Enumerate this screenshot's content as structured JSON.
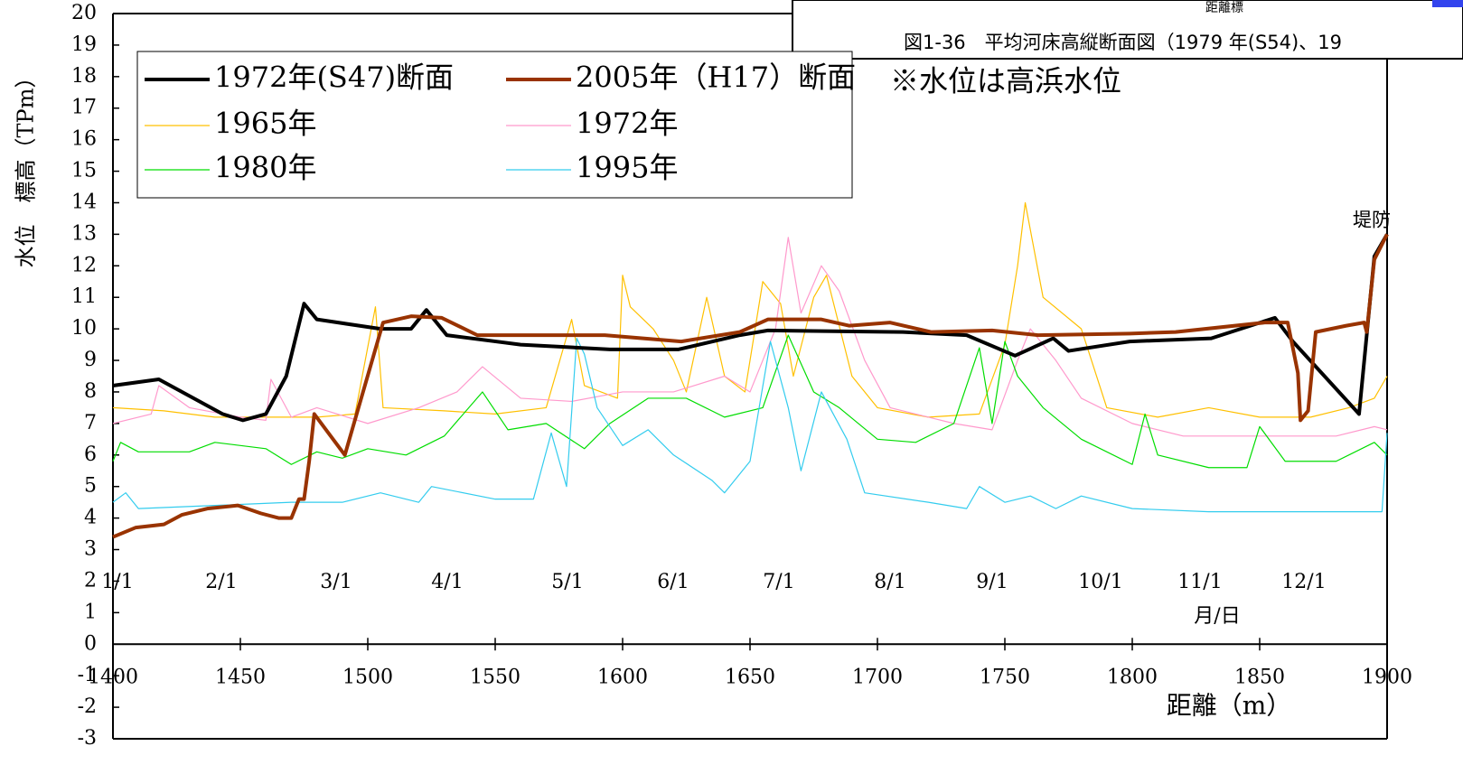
{
  "chart_data": {
    "type": "line",
    "ylabel": "水位　標高（TPm）",
    "xlabel": "距離（m）",
    "annotation": "※水位は高浜水位",
    "levee_label": "堤防",
    "month_axis_label": "月/日",
    "month_labels": [
      "1/1",
      "2/1",
      "3/1",
      "4/1",
      "5/1",
      "6/1",
      "7/1",
      "8/1",
      "9/1",
      "10/1",
      "11/1",
      "12/1"
    ],
    "inset": {
      "label": "距離標",
      "caption": "図1-36　平均河床高縦断面図（1979 年(S54)、19"
    },
    "xlim": [
      1400,
      1900
    ],
    "xticks": [
      1400,
      1450,
      1500,
      1550,
      1600,
      1650,
      1700,
      1750,
      1800,
      1850,
      1900
    ],
    "ylim": [
      -3,
      20
    ],
    "yticks": [
      -3,
      -2,
      -1,
      0,
      1,
      2,
      3,
      4,
      5,
      6,
      7,
      8,
      9,
      10,
      11,
      12,
      13,
      14,
      15,
      16,
      17,
      18,
      19,
      20
    ],
    "series": [
      {
        "name": "1972年(S47)断面",
        "color": "#000000",
        "x": [
          1400,
          1418,
          1443,
          1451,
          1460,
          1468,
          1475,
          1480,
          1505,
          1517,
          1523,
          1531,
          1560,
          1595,
          1622,
          1646,
          1657,
          1710,
          1735,
          1754,
          1769,
          1775,
          1799,
          1831,
          1856,
          1863,
          1889,
          1892,
          1895,
          1900
        ],
        "values": [
          8.2,
          8.4,
          7.3,
          7.1,
          7.3,
          8.5,
          10.8,
          10.3,
          10.0,
          10.0,
          10.6,
          9.8,
          9.5,
          9.35,
          9.35,
          9.8,
          9.95,
          9.9,
          9.8,
          9.15,
          9.7,
          9.3,
          9.6,
          9.7,
          10.35,
          9.6,
          7.3,
          9.8,
          12.3,
          13.0
        ]
      },
      {
        "name": "2005年（H17）断面",
        "color": "#993300",
        "x": [
          1400,
          1409,
          1420,
          1427,
          1437,
          1449,
          1458,
          1465,
          1470,
          1473,
          1475,
          1477,
          1479,
          1491,
          1506,
          1517,
          1529,
          1543,
          1593,
          1623,
          1646,
          1657,
          1678,
          1689,
          1705,
          1721,
          1745,
          1763,
          1799,
          1817,
          1852,
          1861,
          1865,
          1866,
          1869,
          1872,
          1884,
          1891,
          1892,
          1895,
          1900
        ],
        "values": [
          3.4,
          3.7,
          3.8,
          4.1,
          4.3,
          4.4,
          4.15,
          4.0,
          4.0,
          4.6,
          4.6,
          5.8,
          7.3,
          6.0,
          10.2,
          10.4,
          10.35,
          9.8,
          9.8,
          9.6,
          9.9,
          10.3,
          10.3,
          10.1,
          10.2,
          9.9,
          9.95,
          9.8,
          9.85,
          9.9,
          10.2,
          10.2,
          8.6,
          7.1,
          7.4,
          9.9,
          10.1,
          10.2,
          9.9,
          12.2,
          13.0
        ]
      },
      {
        "name": "1965年",
        "color": "#ffc000",
        "x": [
          1400,
          1420,
          1440,
          1460,
          1480,
          1495,
          1503,
          1506,
          1530,
          1550,
          1570,
          1580,
          1585,
          1598,
          1600,
          1603,
          1612,
          1620,
          1625,
          1633,
          1640,
          1648,
          1655,
          1662,
          1667,
          1675,
          1680,
          1690,
          1700,
          1720,
          1740,
          1750,
          1755,
          1758,
          1765,
          1780,
          1790,
          1810,
          1830,
          1850,
          1870,
          1885,
          1895,
          1900
        ],
        "values": [
          7.5,
          7.4,
          7.2,
          7.2,
          7.2,
          7.3,
          10.7,
          7.5,
          7.4,
          7.3,
          7.5,
          10.3,
          8.2,
          7.8,
          11.7,
          10.7,
          10.0,
          9.0,
          8.0,
          11.0,
          8.5,
          8.0,
          11.5,
          10.8,
          8.5,
          11.0,
          11.7,
          8.5,
          7.5,
          7.2,
          7.3,
          9.5,
          12.0,
          14.0,
          11.0,
          10.0,
          7.5,
          7.2,
          7.5,
          7.2,
          7.2,
          7.5,
          7.8,
          8.5
        ]
      },
      {
        "name": "1972年",
        "color": "#ff99cc",
        "x": [
          1400,
          1415,
          1418,
          1430,
          1450,
          1460,
          1462,
          1470,
          1480,
          1500,
          1520,
          1535,
          1545,
          1560,
          1580,
          1600,
          1620,
          1640,
          1650,
          1660,
          1665,
          1670,
          1678,
          1685,
          1695,
          1705,
          1730,
          1745,
          1755,
          1760,
          1770,
          1780,
          1800,
          1820,
          1850,
          1880,
          1895,
          1900
        ],
        "values": [
          7.0,
          7.3,
          8.2,
          7.5,
          7.2,
          7.1,
          8.4,
          7.2,
          7.5,
          7.0,
          7.5,
          8.0,
          8.8,
          7.8,
          7.7,
          8.0,
          8.0,
          8.5,
          8.0,
          10.0,
          12.9,
          10.5,
          12.0,
          11.2,
          9.0,
          7.5,
          7.0,
          6.8,
          9.0,
          10.0,
          9.0,
          7.8,
          7.0,
          6.6,
          6.6,
          6.6,
          6.9,
          6.8
        ]
      },
      {
        "name": "1980年",
        "color": "#00dd00",
        "x": [
          1400,
          1403,
          1410,
          1430,
          1440,
          1460,
          1470,
          1480,
          1490,
          1500,
          1515,
          1530,
          1545,
          1555,
          1570,
          1585,
          1595,
          1610,
          1625,
          1640,
          1655,
          1665,
          1675,
          1685,
          1700,
          1715,
          1730,
          1740,
          1745,
          1750,
          1755,
          1765,
          1780,
          1800,
          1805,
          1810,
          1830,
          1845,
          1850,
          1860,
          1880,
          1895,
          1900
        ],
        "values": [
          5.8,
          6.4,
          6.1,
          6.1,
          6.4,
          6.2,
          5.7,
          6.1,
          5.9,
          6.2,
          6.0,
          6.6,
          8.0,
          6.8,
          7.0,
          6.2,
          7.0,
          7.8,
          7.8,
          7.2,
          7.5,
          9.8,
          8.0,
          7.5,
          6.5,
          6.4,
          7.0,
          9.4,
          7.0,
          9.6,
          8.5,
          7.5,
          6.5,
          5.7,
          7.3,
          6.0,
          5.6,
          5.6,
          6.9,
          5.8,
          5.8,
          6.4,
          6.0
        ]
      },
      {
        "name": "1995年",
        "color": "#33ccee",
        "x": [
          1400,
          1405,
          1410,
          1440,
          1470,
          1490,
          1505,
          1520,
          1525,
          1550,
          1565,
          1572,
          1578,
          1582,
          1585,
          1590,
          1600,
          1610,
          1620,
          1635,
          1640,
          1650,
          1658,
          1665,
          1670,
          1678,
          1688,
          1695,
          1720,
          1735,
          1740,
          1750,
          1760,
          1770,
          1780,
          1800,
          1830,
          1860,
          1880,
          1898,
          1900
        ],
        "values": [
          4.5,
          4.8,
          4.3,
          4.4,
          4.5,
          4.5,
          4.8,
          4.5,
          5.0,
          4.6,
          4.6,
          6.7,
          5.0,
          9.7,
          9.2,
          7.5,
          6.3,
          6.8,
          6.0,
          5.2,
          4.8,
          5.8,
          9.6,
          7.5,
          5.5,
          8.0,
          6.5,
          4.8,
          4.5,
          4.3,
          5.0,
          4.5,
          4.7,
          4.3,
          4.7,
          4.3,
          4.2,
          4.2,
          4.2,
          4.2,
          6.7
        ]
      }
    ]
  }
}
